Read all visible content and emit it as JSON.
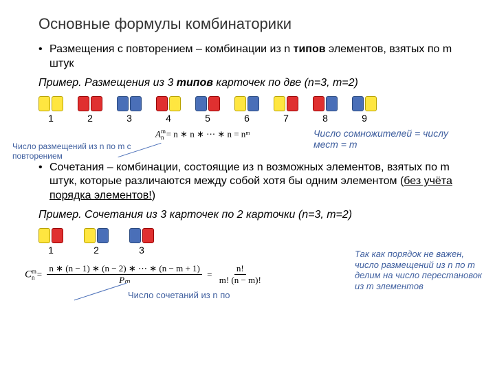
{
  "title": "Основные формулы комбинаторики",
  "section1": {
    "text_a": "Размещения с повторением – комбинации из n ",
    "text_b": "типов",
    "text_c": " элементов, взятых по m штук",
    "example_a": "Пример. Размещения из 3 ",
    "example_b": "типов",
    "example_c": " карточек по две (n=3, m=2)",
    "formula": "A",
    "formula_body": " = n ∗ n ∗ ⋯ ∗ n = nᵐ",
    "note_right": "Число сомножителей = числу мест = m",
    "note_left": "Число размещений из  n по m с повторением",
    "pairs": [
      {
        "num": "1",
        "c": [
          "yellow",
          "yellow"
        ]
      },
      {
        "num": "2",
        "c": [
          "red",
          "red"
        ]
      },
      {
        "num": "3",
        "c": [
          "blue",
          "blue"
        ]
      },
      {
        "num": "4",
        "c": [
          "red",
          "yellow"
        ]
      },
      {
        "num": "5",
        "c": [
          "blue",
          "red"
        ]
      },
      {
        "num": "6",
        "c": [
          "yellow",
          "blue"
        ]
      },
      {
        "num": "7",
        "c": [
          "yellow",
          "red"
        ]
      },
      {
        "num": "8",
        "c": [
          "red",
          "blue"
        ]
      },
      {
        "num": "9",
        "c": [
          "blue",
          "yellow"
        ]
      }
    ]
  },
  "section2": {
    "text_a": "Сочетания – комбинации, состоящие из n возможных элементов, взятых по m штук, которые различаются между собой хотя бы одним элементом (",
    "text_b": "без учёта порядка элементов!",
    "text_c": ")",
    "example": "Пример. Сочетания из 3 карточек по 2 карточки (n=3, m=2)",
    "pairs": [
      {
        "num": "1",
        "c": [
          "yellow",
          "red"
        ]
      },
      {
        "num": "2",
        "c": [
          "yellow",
          "blue"
        ]
      },
      {
        "num": "3",
        "c": [
          "blue",
          "red"
        ]
      }
    ],
    "formula": {
      "sym": "C",
      "num1": "n ∗ (n − 1) ∗ (n − 2) ∗ ⋯ ∗ (n − m + 1)",
      "den1": "Pₘ",
      "num2": "n!",
      "den2": "m! (n − m)!"
    },
    "note_right": "Так как порядок не важен,  число размещений из n по m делим на число перестановок из m элементов",
    "note_bottom": "Число сочетаний из  n по"
  }
}
